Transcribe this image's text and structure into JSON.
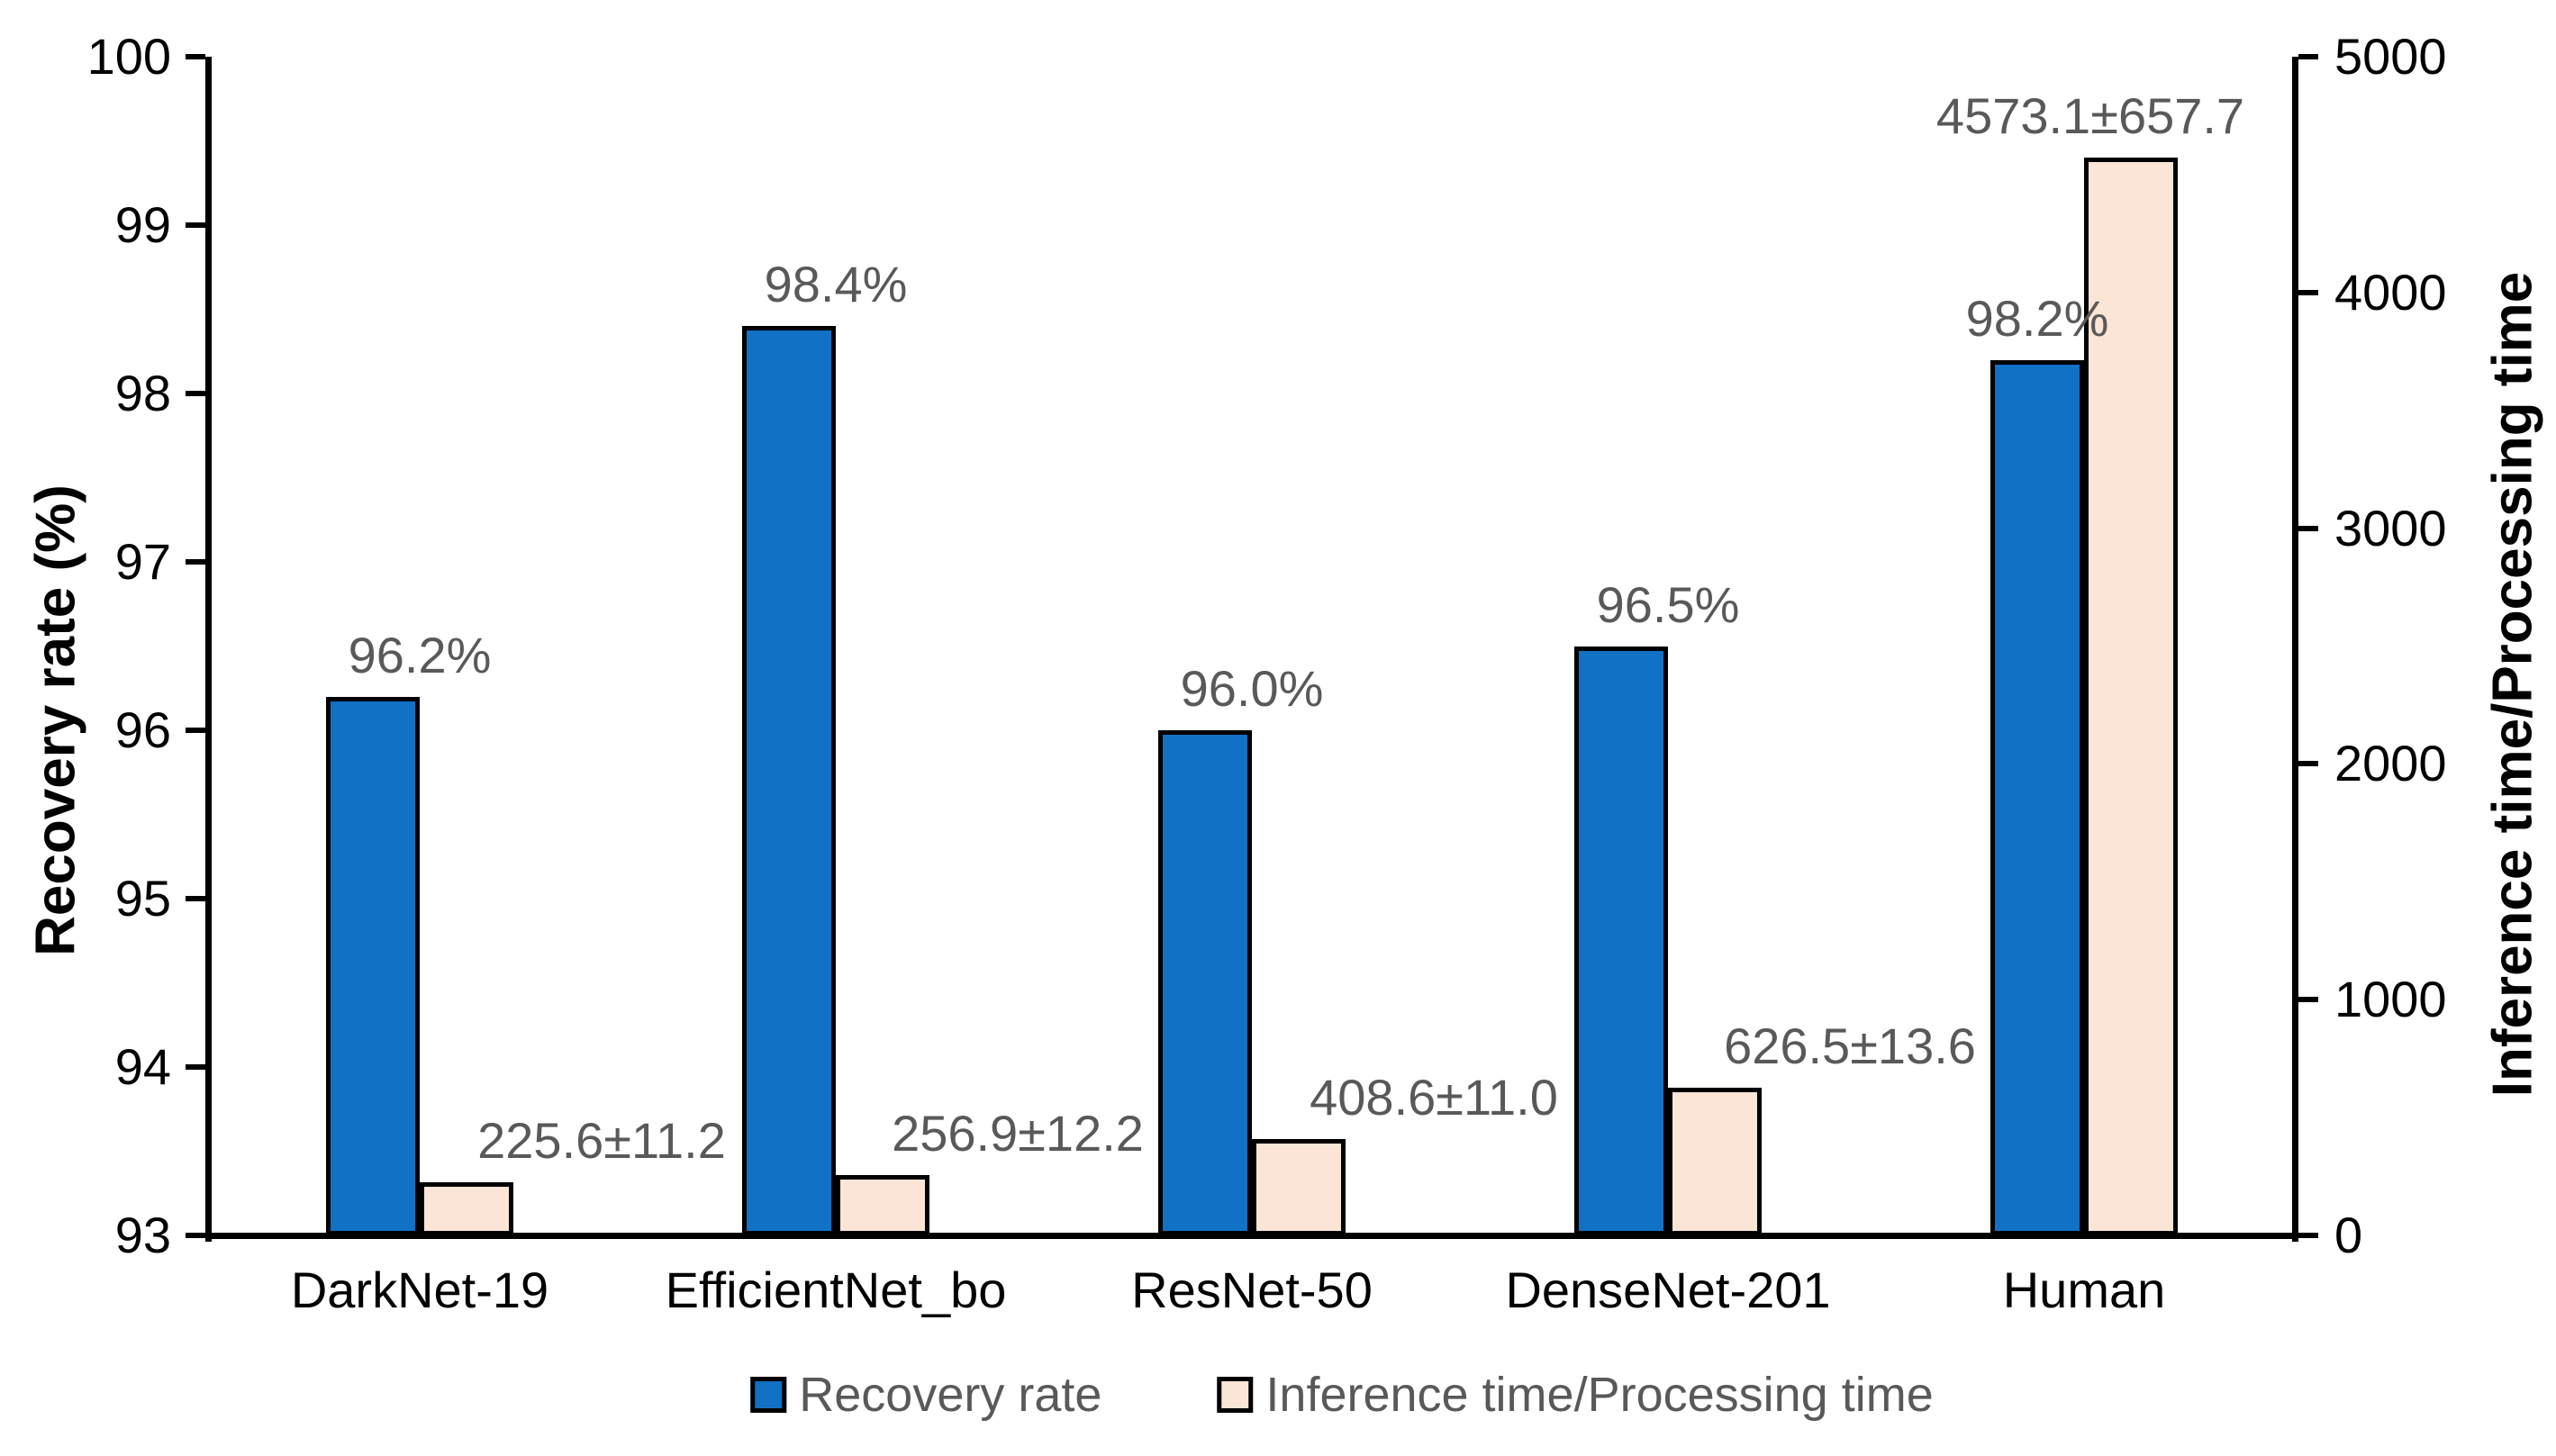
{
  "chart_data": {
    "type": "bar",
    "dual_axis": true,
    "categories": [
      "DarkNet-19",
      "EfficientNet_bo",
      "ResNet-50",
      "DenseNet-201",
      "Human"
    ],
    "series": [
      {
        "name": "Recovery rate",
        "axis": "left",
        "values": [
          96.2,
          98.4,
          96.0,
          96.5,
          98.2
        ],
        "data_labels": [
          "96.2%",
          "98.4%",
          "96.0%",
          "96.5%",
          "98.2%"
        ]
      },
      {
        "name": "Inference time/Processing time",
        "axis": "right",
        "values": [
          225.6,
          256.9,
          408.6,
          626.5,
          4573.1
        ],
        "data_labels": [
          "225.6±11.2",
          "256.9±12.2",
          "408.6±11.0",
          "626.5±13.6",
          "4573.1±657.7"
        ]
      }
    ],
    "left_axis": {
      "title": "Recovery rate (%)",
      "min": 93,
      "max": 100,
      "step": 1,
      "tick_labels": [
        "100",
        "99",
        "98",
        "97",
        "96",
        "95",
        "94",
        "93"
      ]
    },
    "right_axis": {
      "title": "Inference time/Processing time",
      "min": 0,
      "max": 5000,
      "step": 1000,
      "tick_labels": [
        "5000",
        "4000",
        "3000",
        "2000",
        "1000",
        "0"
      ]
    },
    "legend": {
      "position": "bottom",
      "entries": [
        "Recovery rate",
        "Inference time/Processing time"
      ]
    },
    "grid": false,
    "colors": {
      "recovery_bar": "#1171C5",
      "inference_bar": "#FBE5D6",
      "bar_border": "#000000",
      "data_label": "#595959",
      "axis_text": "#000000"
    }
  }
}
